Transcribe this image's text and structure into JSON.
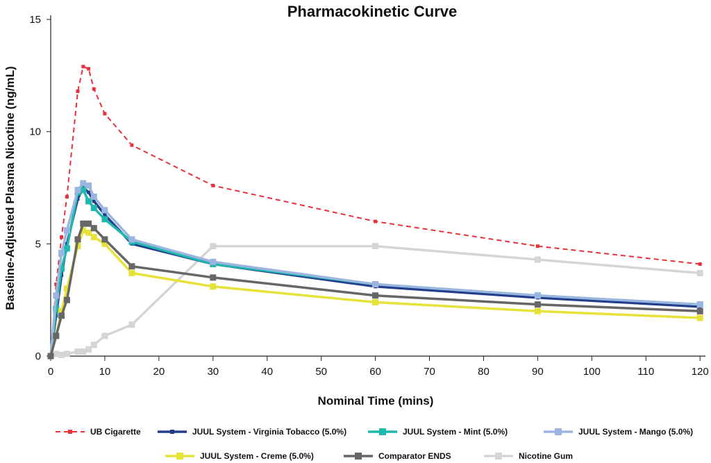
{
  "chart_data": {
    "type": "line",
    "title": "Pharmacokinetic Curve",
    "xlabel": "Nominal Time (mins)",
    "ylabel": "Baseline-Adjusted Plasma Nicotine (ng/mL)",
    "xlim": [
      0,
      121
    ],
    "ylim": [
      0,
      15
    ],
    "xticks": [
      0,
      10,
      20,
      30,
      40,
      50,
      60,
      70,
      80,
      90,
      100,
      110,
      120
    ],
    "yticks": [
      0,
      5,
      10,
      15
    ],
    "grid": false,
    "legend_position": "bottom",
    "series": [
      {
        "name": "UB Cigarette",
        "color": "#e8303a",
        "style": "dashed",
        "marker_size": "small",
        "x": [
          0,
          1,
          2,
          3,
          5,
          6,
          7,
          8,
          10,
          15,
          30,
          60,
          90,
          120
        ],
        "y": [
          0,
          3.2,
          5.3,
          7.1,
          11.8,
          12.9,
          12.8,
          11.9,
          10.8,
          9.4,
          7.6,
          6.0,
          4.9,
          4.1
        ]
      },
      {
        "name": "JUUL System - Virginia Tobacco (5.0%)",
        "color": "#233e8b",
        "style": "solid",
        "marker_size": "small",
        "x": [
          0,
          1,
          2,
          3,
          5,
          6,
          7,
          8,
          10,
          15,
          30,
          60,
          90,
          120
        ],
        "y": [
          0,
          1.8,
          3.6,
          5.0,
          7.0,
          7.5,
          7.3,
          6.9,
          6.3,
          5.0,
          4.1,
          3.1,
          2.6,
          2.2
        ]
      },
      {
        "name": "JUUL System - Mint (5.0%)",
        "color": "#1fb8ad",
        "style": "solid",
        "marker_size": "large",
        "x": [
          0,
          1,
          2,
          3,
          5,
          6,
          7,
          8,
          10,
          15,
          30,
          60,
          90,
          120
        ],
        "y": [
          0,
          2.1,
          3.9,
          4.8,
          7.3,
          7.4,
          6.9,
          6.6,
          6.1,
          5.1,
          4.1,
          3.2,
          2.7,
          2.3
        ]
      },
      {
        "name": "JUUL System - Mango (5.0%)",
        "color": "#9cb5e0",
        "style": "solid",
        "marker_size": "large",
        "x": [
          0,
          1,
          2,
          3,
          5,
          6,
          7,
          8,
          10,
          15,
          30,
          60,
          90,
          120
        ],
        "y": [
          0,
          2.7,
          4.6,
          5.6,
          7.4,
          7.7,
          7.6,
          7.1,
          6.5,
          5.2,
          4.2,
          3.2,
          2.7,
          2.3
        ]
      },
      {
        "name": "JUUL System - Creme (5.0%)",
        "color": "#e6e23a",
        "style": "solid",
        "marker_size": "large",
        "x": [
          0,
          1,
          2,
          3,
          5,
          6,
          7,
          8,
          10,
          15,
          30,
          60,
          90,
          120
        ],
        "y": [
          0,
          0.9,
          2.0,
          3.0,
          4.9,
          5.6,
          5.5,
          5.3,
          5.0,
          3.7,
          3.1,
          2.4,
          2.0,
          1.7
        ]
      },
      {
        "name": "Comparator ENDS",
        "color": "#666666",
        "style": "solid",
        "marker_size": "large",
        "x": [
          0,
          1,
          2,
          3,
          5,
          6,
          7,
          8,
          10,
          15,
          30,
          60,
          90,
          120
        ],
        "y": [
          0,
          0.9,
          1.8,
          2.5,
          5.2,
          5.9,
          5.9,
          5.7,
          5.2,
          4.0,
          3.5,
          2.7,
          2.3,
          2.0
        ]
      },
      {
        "name": "Nicotine Gum",
        "color": "#d5d5d5",
        "style": "solid",
        "marker_size": "large",
        "x": [
          0,
          1,
          2,
          3,
          5,
          6,
          7,
          8,
          10,
          15,
          30,
          60,
          90,
          120
        ],
        "y": [
          0,
          0.1,
          0.05,
          0.1,
          0.2,
          0.2,
          0.3,
          0.5,
          0.9,
          1.4,
          4.9,
          4.9,
          4.3,
          3.7
        ]
      }
    ]
  }
}
